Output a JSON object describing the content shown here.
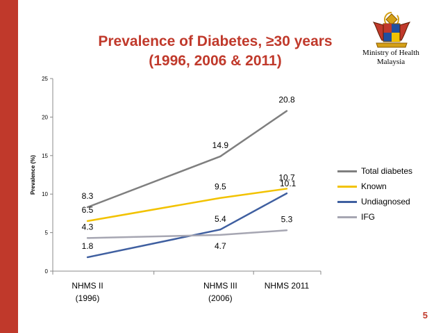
{
  "header": {
    "title_line1": "Prevalence of Diabetes, ≥30 years",
    "title_line2": "(1996, 2006 & 2011)",
    "ministry_line1": "Ministry of Health",
    "ministry_line2": "Malaysia",
    "page_number": "5"
  },
  "colors": {
    "accent": "#c0392b",
    "left_bar": "#c0392b",
    "title": "#c0392b",
    "page_number": "#c0392b",
    "crest": "crest-emblem"
  },
  "chart_data": {
    "type": "line",
    "ylabel": "Prevalence (%)",
    "xlabel": "",
    "ylim": [
      0,
      25
    ],
    "yticks": [
      0,
      5,
      10,
      15,
      20,
      25
    ],
    "categories": [
      [
        "NHMS II",
        "(1996)"
      ],
      [
        "NHMS III",
        "(2006)"
      ],
      [
        "NHMS 2011"
      ]
    ],
    "x_years": [
      1996,
      2006,
      2011
    ],
    "grid": false,
    "legend_position": "right",
    "series": [
      {
        "name": "Total diabetes",
        "color": "#7f7f7f",
        "values": [
          8.3,
          14.9,
          20.8
        ],
        "labels": [
          "8.3",
          "14.9",
          "20.8"
        ]
      },
      {
        "name": "Known",
        "color": "#f2c200",
        "values": [
          6.5,
          9.5,
          10.7
        ],
        "labels": [
          "6.5",
          "9.5",
          "10.7"
        ]
      },
      {
        "name": "Undiagnosed",
        "color": "#3f5fa0",
        "values": [
          1.8,
          5.4,
          10.1
        ],
        "labels": [
          "1.8",
          "5.4",
          "10.1"
        ]
      },
      {
        "name": "IFG",
        "color": "#a6a6b2",
        "values": [
          4.3,
          4.7,
          5.3
        ],
        "labels": [
          "4.3",
          "4.7",
          "5.3"
        ]
      }
    ]
  }
}
